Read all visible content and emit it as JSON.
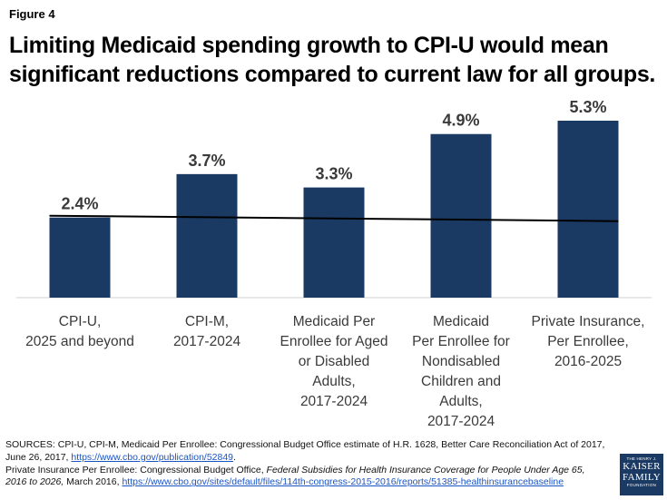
{
  "figure_label": "Figure 4",
  "title_lines": [
    "Limiting Medicaid spending growth to CPI-U would mean",
    "significant reductions compared to current law for all groups."
  ],
  "chart_data": {
    "type": "bar",
    "categories": [
      [
        "CPI-U,",
        "2025 and beyond"
      ],
      [
        "CPI-M,",
        "2017-2024"
      ],
      [
        "Medicaid Per",
        "Enrollee for Aged",
        "or Disabled",
        "Adults,",
        "2017-2024"
      ],
      [
        "Medicaid",
        "Per Enrollee for",
        "Nondisabled",
        "Children and",
        "Adults,",
        "2017-2024"
      ],
      [
        "Private Insurance,",
        "Per Enrollee,",
        "2016-2025"
      ]
    ],
    "values": [
      2.4,
      3.7,
      3.3,
      4.9,
      5.3
    ],
    "data_labels": [
      "2.4%",
      "3.7%",
      "3.3%",
      "4.9%",
      "5.3%"
    ],
    "reference_line_value": 2.4,
    "ylim": [
      0,
      5.3
    ],
    "bar_color": "#1b3a63",
    "line_color": "#000000",
    "grid": false,
    "legend": "none"
  },
  "sources": {
    "line1": "SOURCES: CPI-U, CPI-M, Medicaid Per Enrollee: Congressional Budget Office estimate of H.R. 1628, Better Care Reconciliation Act of 2017,",
    "line2_text": "June 26, 2017, ",
    "line2_link": "https://www.cbo.gov/publication/52849",
    "line2_end": ".",
    "line3_text": "Private Insurance Per Enrollee: Congressional Budget Office, ",
    "line3_italic": "Federal Subsidies for Health Insurance Coverage for People Under Age 65,",
    "line4_italic": "2016 to 2026,",
    "line4_text": " March 2016, ",
    "line4_link": "https://www.cbo.gov/sites/default/files/114th-congress-2015-2016/reports/51385-healthinsurancebaseline"
  },
  "logo": {
    "small": "THE HENRY J.",
    "line1": "KAISER",
    "line2": "FAMILY",
    "foundation": "FOUNDATION"
  }
}
